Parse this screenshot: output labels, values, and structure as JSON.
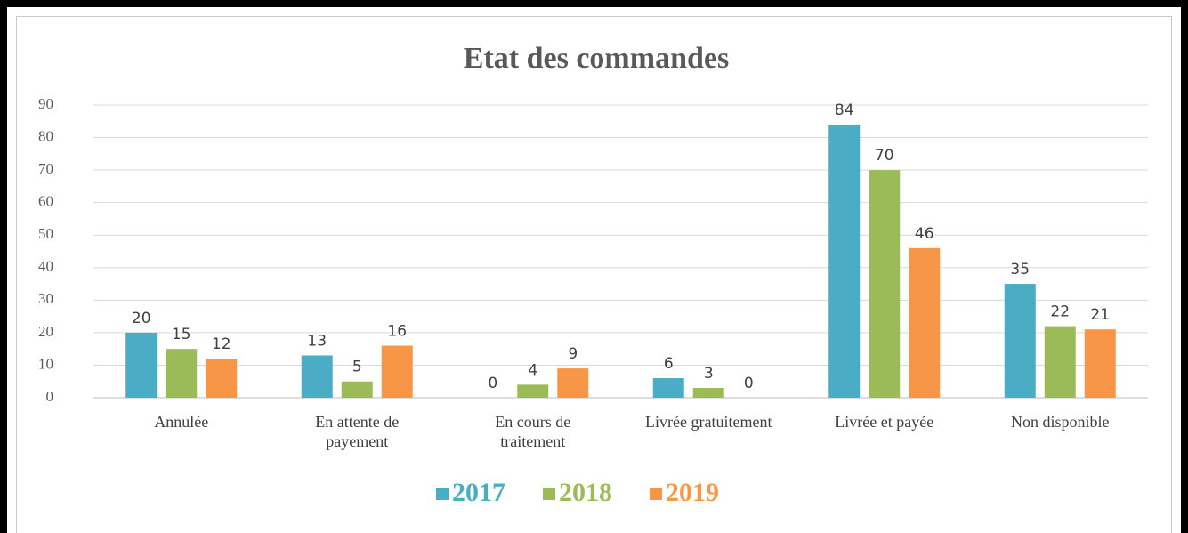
{
  "chart_data": {
    "type": "bar",
    "title": "Etat des commandes",
    "categories": [
      "Annulée",
      "En attente de\npayement",
      "En cours de\ntraitement",
      "Livrée gratuitement",
      "Livrée et payée",
      "Non disponible"
    ],
    "series": [
      {
        "name": "2017",
        "color": "#4bacc6",
        "values": [
          20,
          13,
          0,
          6,
          84,
          35
        ]
      },
      {
        "name": "2018",
        "color": "#9bbb59",
        "values": [
          15,
          5,
          4,
          3,
          70,
          22
        ]
      },
      {
        "name": "2019",
        "color": "#f79646",
        "values": [
          12,
          16,
          9,
          0,
          46,
          21
        ]
      }
    ],
    "ylim": [
      0,
      90
    ],
    "yticks": [
      0,
      10,
      20,
      30,
      40,
      50,
      60,
      70,
      80,
      90
    ],
    "grid": true,
    "legend": "bottom"
  }
}
